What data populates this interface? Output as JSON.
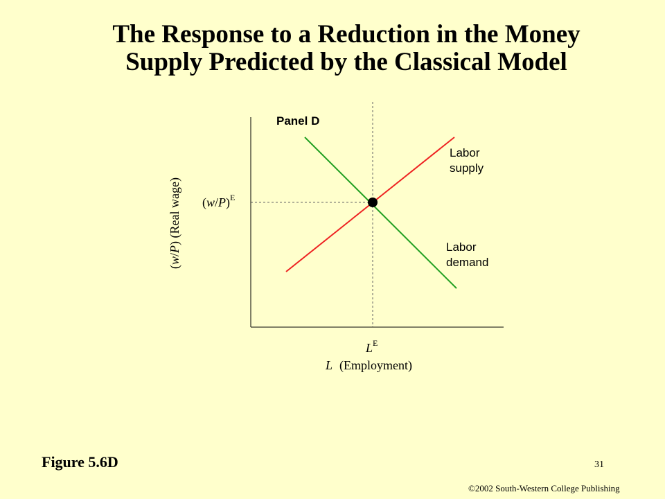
{
  "slide": {
    "title_line1": "The Response to a Reduction in the Money",
    "title_line2": "Supply Predicted by the Classical Model",
    "figure_label": "Figure 5.6D",
    "slide_number": "31",
    "copyright": "©2002 South-Western College Publishing"
  },
  "diagram": {
    "panel_label": "Panel D",
    "y_axis_label": {
      "var_open": "(",
      "var_w": "w",
      "var_slash": "/",
      "var_p": "P",
      "var_close": ")",
      "desc": " (Real wage)"
    },
    "equilibrium_wage": {
      "open": "(",
      "w": "w",
      "slash": "/",
      "p": "P",
      "close": ")",
      "sup": "E"
    },
    "equilibrium_employment": {
      "base": "L",
      "sup": "E"
    },
    "x_axis_label": {
      "var": "L",
      "desc": "(Employment)"
    },
    "labor_supply_label": [
      "Labor",
      "supply"
    ],
    "labor_demand_label": [
      "Labor",
      "demand"
    ],
    "colors": {
      "background": "#ffffcc",
      "labor_supply": "#ee2222",
      "labor_demand": "#22a022",
      "axis": "#000000",
      "guide": "#666666"
    }
  }
}
